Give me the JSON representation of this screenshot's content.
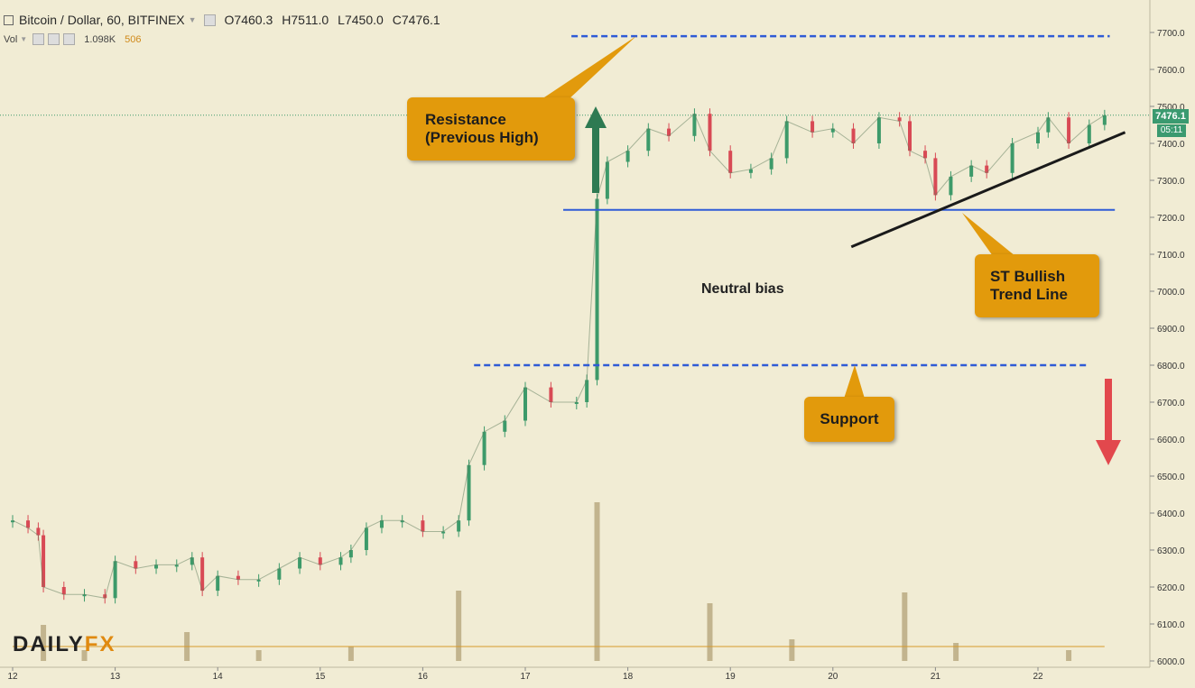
{
  "header": {
    "title": "Bitcoin / Dollar, 60, BITFINEX",
    "open": "O7460.3",
    "high": "H7511.0",
    "low": "L7450.0",
    "close": "C7476.1"
  },
  "volume_header": {
    "label": "Vol",
    "value1": "1.098K",
    "value2": "506"
  },
  "annotations": {
    "resistance_line1": "Resistance",
    "resistance_line2": "(Previous High)",
    "support": "Support",
    "trend_line1": "ST Bullish",
    "trend_line2": "Trend Line",
    "neutral": "Neutral bias"
  },
  "price_badge": "7476.1",
  "time_badge": "05:11",
  "logo": {
    "part1": "DAILY",
    "part2": "FX"
  },
  "colors": {
    "background": "#f1ecd4",
    "up_candle": "#3d9a6a",
    "down_candle": "#d84a55",
    "callout": "#e29a0c",
    "level_line": "#2f5bd6",
    "trend_line": "#1a1a1a",
    "arrow_up": "#2e7a52",
    "arrow_down": "#e2484d"
  },
  "chart_data": {
    "type": "line",
    "title": "Bitcoin / Dollar, 60, BITFINEX",
    "xlabel": "",
    "ylabel": "",
    "x_ticks": [
      "12",
      "13",
      "14",
      "15",
      "16",
      "17",
      "18",
      "19",
      "20",
      "21",
      "22"
    ],
    "y_ticks": [
      6000,
      6100,
      6200,
      6300,
      6400,
      6500,
      6600,
      6700,
      6800,
      6900,
      7000,
      7100,
      7200,
      7300,
      7400,
      7500,
      7600,
      7700
    ],
    "ylim": [
      6000,
      7740
    ],
    "grid": false,
    "last_price": 7476.1,
    "series": [
      {
        "values": [
          {
            "x": 12.0,
            "y": 6380
          },
          {
            "x": 12.15,
            "y": 6360
          },
          {
            "x": 12.25,
            "y": 6340
          },
          {
            "x": 12.3,
            "y": 6200
          },
          {
            "x": 12.5,
            "y": 6180
          },
          {
            "x": 12.7,
            "y": 6180
          },
          {
            "x": 12.9,
            "y": 6170
          },
          {
            "x": 13.0,
            "y": 6270
          },
          {
            "x": 13.2,
            "y": 6250
          },
          {
            "x": 13.4,
            "y": 6260
          },
          {
            "x": 13.6,
            "y": 6260
          },
          {
            "x": 13.75,
            "y": 6280
          },
          {
            "x": 13.85,
            "y": 6190
          },
          {
            "x": 14.0,
            "y": 6230
          },
          {
            "x": 14.2,
            "y": 6220
          },
          {
            "x": 14.4,
            "y": 6220
          },
          {
            "x": 14.6,
            "y": 6250
          },
          {
            "x": 14.8,
            "y": 6280
          },
          {
            "x": 15.0,
            "y": 6260
          },
          {
            "x": 15.2,
            "y": 6280
          },
          {
            "x": 15.3,
            "y": 6300
          },
          {
            "x": 15.45,
            "y": 6360
          },
          {
            "x": 15.6,
            "y": 6380
          },
          {
            "x": 15.8,
            "y": 6380
          },
          {
            "x": 16.0,
            "y": 6350
          },
          {
            "x": 16.2,
            "y": 6350
          },
          {
            "x": 16.35,
            "y": 6380
          },
          {
            "x": 16.45,
            "y": 6530
          },
          {
            "x": 16.6,
            "y": 6620
          },
          {
            "x": 16.8,
            "y": 6650
          },
          {
            "x": 17.0,
            "y": 6740
          },
          {
            "x": 17.25,
            "y": 6700
          },
          {
            "x": 17.5,
            "y": 6700
          },
          {
            "x": 17.6,
            "y": 6760
          },
          {
            "x": 17.7,
            "y": 7250
          },
          {
            "x": 17.8,
            "y": 7350
          },
          {
            "x": 18.0,
            "y": 7380
          },
          {
            "x": 18.2,
            "y": 7440
          },
          {
            "x": 18.4,
            "y": 7420
          },
          {
            "x": 18.65,
            "y": 7480
          },
          {
            "x": 18.8,
            "y": 7380
          },
          {
            "x": 19.0,
            "y": 7320
          },
          {
            "x": 19.2,
            "y": 7330
          },
          {
            "x": 19.4,
            "y": 7360
          },
          {
            "x": 19.55,
            "y": 7460
          },
          {
            "x": 19.8,
            "y": 7430
          },
          {
            "x": 20.0,
            "y": 7440
          },
          {
            "x": 20.2,
            "y": 7400
          },
          {
            "x": 20.45,
            "y": 7470
          },
          {
            "x": 20.65,
            "y": 7460
          },
          {
            "x": 20.75,
            "y": 7380
          },
          {
            "x": 20.9,
            "y": 7360
          },
          {
            "x": 21.0,
            "y": 7260
          },
          {
            "x": 21.15,
            "y": 7310
          },
          {
            "x": 21.35,
            "y": 7340
          },
          {
            "x": 21.5,
            "y": 7320
          },
          {
            "x": 21.75,
            "y": 7400
          },
          {
            "x": 22.0,
            "y": 7430
          },
          {
            "x": 22.1,
            "y": 7470
          },
          {
            "x": 22.3,
            "y": 7400
          },
          {
            "x": 22.5,
            "y": 7450
          },
          {
            "x": 22.65,
            "y": 7476
          }
        ]
      }
    ],
    "volume": [
      {
        "x": 12.3,
        "v": 1.0
      },
      {
        "x": 12.7,
        "v": 0.3
      },
      {
        "x": 13.7,
        "v": 0.8
      },
      {
        "x": 14.4,
        "v": 0.3
      },
      {
        "x": 15.3,
        "v": 0.4
      },
      {
        "x": 16.35,
        "v": 1.95
      },
      {
        "x": 17.7,
        "v": 4.4
      },
      {
        "x": 18.8,
        "v": 1.6
      },
      {
        "x": 19.6,
        "v": 0.6
      },
      {
        "x": 20.7,
        "v": 1.9
      },
      {
        "x": 21.2,
        "v": 0.5
      },
      {
        "x": 22.3,
        "v": 0.3
      }
    ],
    "levels": [
      {
        "name": "Resistance (Previous High)",
        "price": 7690,
        "style": "dashed",
        "x_from": 17.45,
        "x_to": 22.7
      },
      {
        "name": "Neutral",
        "price": 7220,
        "style": "solid",
        "x_from": 17.37,
        "x_to": 22.75
      },
      {
        "name": "Support",
        "price": 6800,
        "style": "dashed",
        "x_from": 16.5,
        "x_to": 22.5
      }
    ],
    "trend_line": {
      "x1": 20.18,
      "y1": 7120,
      "x2": 22.85,
      "y2": 7430
    }
  }
}
